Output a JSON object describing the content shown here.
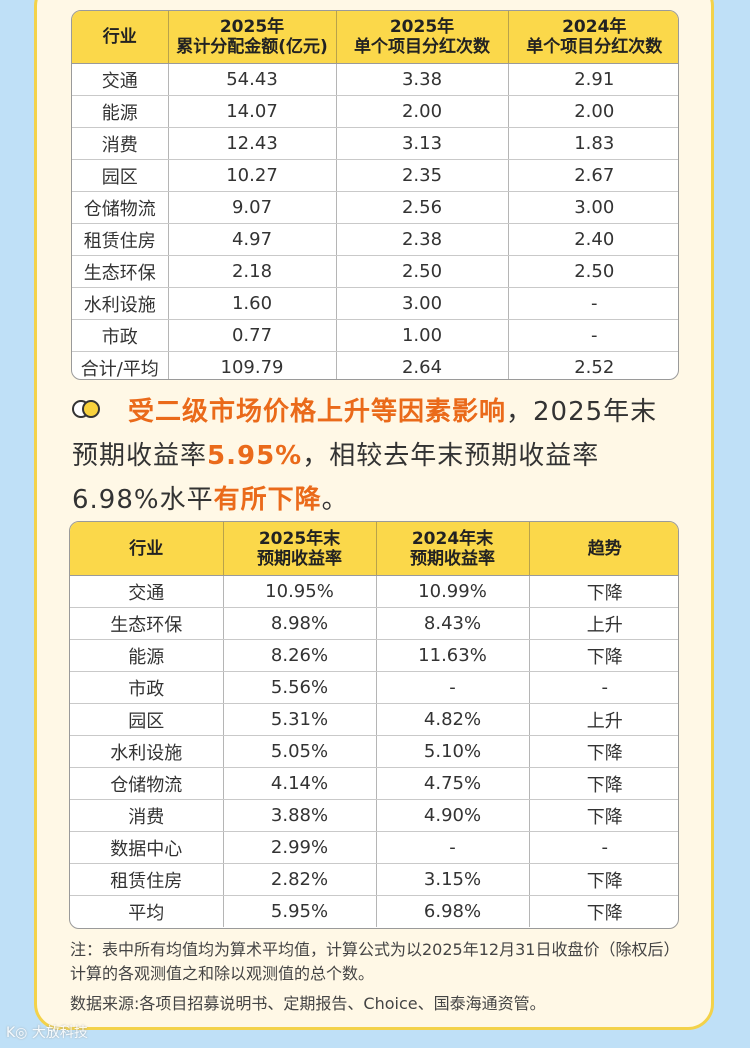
{
  "table1": {
    "headers": [
      [
        "行业"
      ],
      [
        "2025年",
        "累计分配金额(亿元)"
      ],
      [
        "2025年",
        "单个项目分红次数"
      ],
      [
        "2024年",
        "单个项目分红次数"
      ]
    ],
    "rows": [
      [
        "交通",
        "54.43",
        "3.38",
        "2.91"
      ],
      [
        "能源",
        "14.07",
        "2.00",
        "2.00"
      ],
      [
        "消费",
        "12.43",
        "3.13",
        "1.83"
      ],
      [
        "园区",
        "10.27",
        "2.35",
        "2.67"
      ],
      [
        "仓储物流",
        "9.07",
        "2.56",
        "3.00"
      ],
      [
        "租赁住房",
        "4.97",
        "2.38",
        "2.40"
      ],
      [
        "生态环保",
        "2.18",
        "2.50",
        "2.50"
      ],
      [
        "水利设施",
        "1.60",
        "3.00",
        "-"
      ],
      [
        "市政",
        "0.77",
        "1.00",
        "-"
      ],
      [
        "合计/平均",
        "109.79",
        "2.64",
        "2.52"
      ]
    ]
  },
  "paragraph": {
    "part1": "受二级市场价格上升等因素影响",
    "part2": "，2025年末预期收益率",
    "part3": "5.95%",
    "part4": "，相较去年末预期收益率6.98%水平",
    "part5": "有所下降",
    "part6": "。"
  },
  "table2": {
    "headers": [
      [
        "行业"
      ],
      [
        "2025年末",
        "预期收益率"
      ],
      [
        "2024年末",
        "预期收益率"
      ],
      [
        "趋势"
      ]
    ],
    "rows": [
      [
        "交通",
        "10.95%",
        "10.99%",
        "下降"
      ],
      [
        "生态环保",
        "8.98%",
        "8.43%",
        "上升"
      ],
      [
        "能源",
        "8.26%",
        "11.63%",
        "下降"
      ],
      [
        "市政",
        "5.56%",
        "-",
        "-"
      ],
      [
        "园区",
        "5.31%",
        "4.82%",
        "上升"
      ],
      [
        "水利设施",
        "5.05%",
        "5.10%",
        "下降"
      ],
      [
        "仓储物流",
        "4.14%",
        "4.75%",
        "下降"
      ],
      [
        "消费",
        "3.88%",
        "4.90%",
        "下降"
      ],
      [
        "数据中心",
        "2.99%",
        "-",
        "-"
      ],
      [
        "租赁住房",
        "2.82%",
        "3.15%",
        "下降"
      ],
      [
        "平均",
        "5.95%",
        "6.98%",
        "下降"
      ]
    ]
  },
  "note": "注：表中所有均值均为算术平均值，计算公式为以2025年12月31日收盘价（除权后）计算的各观测值之和除以观测值的总个数。",
  "source": "数据来源:各项目招募说明书、定期报告、Choice、国泰海通资管。",
  "watermark": "K◎ 大放科技",
  "colors": {
    "accent": "#ea6a1a",
    "header": "#fbd84a",
    "border": "#f3d24a",
    "background": "#bfe0f7"
  }
}
